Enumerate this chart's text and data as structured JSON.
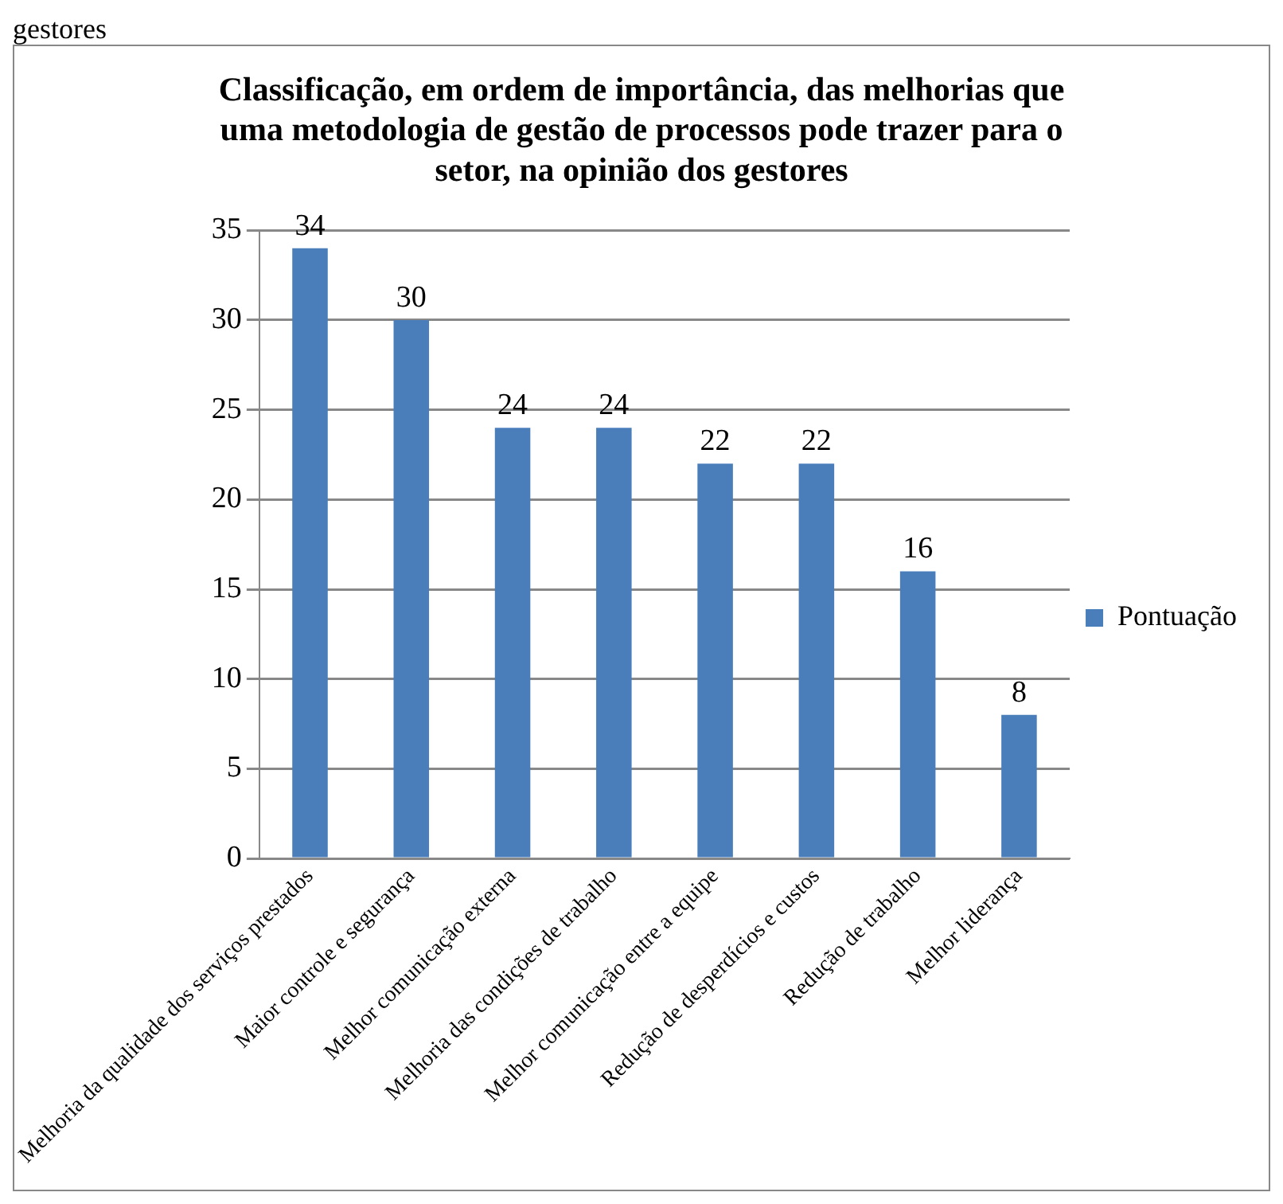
{
  "chart_data": {
    "type": "bar",
    "title": "Classificação, em ordem de importância, das melhorias que uma metodologia de gestão de processos pode trazer para o setor, na opinião dos gestores",
    "categories": [
      "Melhoria da qualidade dos serviços prestados",
      "Maior controle e segurança",
      "Melhor comunicação externa",
      "Melhoria das condições de trabalho",
      "Melhor comunicação entre a equipe",
      "Redução de desperdícios e custos",
      "Redução de trabalho",
      "Melhor liderança"
    ],
    "series": [
      {
        "name": "Pontuação",
        "color": "#4a7ebb",
        "values": [
          34,
          30,
          24,
          24,
          22,
          22,
          16,
          8
        ]
      }
    ],
    "ylim": [
      0,
      35
    ],
    "yticks": [
      0,
      5,
      10,
      15,
      20,
      25,
      30,
      35
    ],
    "grid": "y",
    "legend": "right",
    "data_labels": true,
    "annotations": [
      "gestores"
    ]
  }
}
